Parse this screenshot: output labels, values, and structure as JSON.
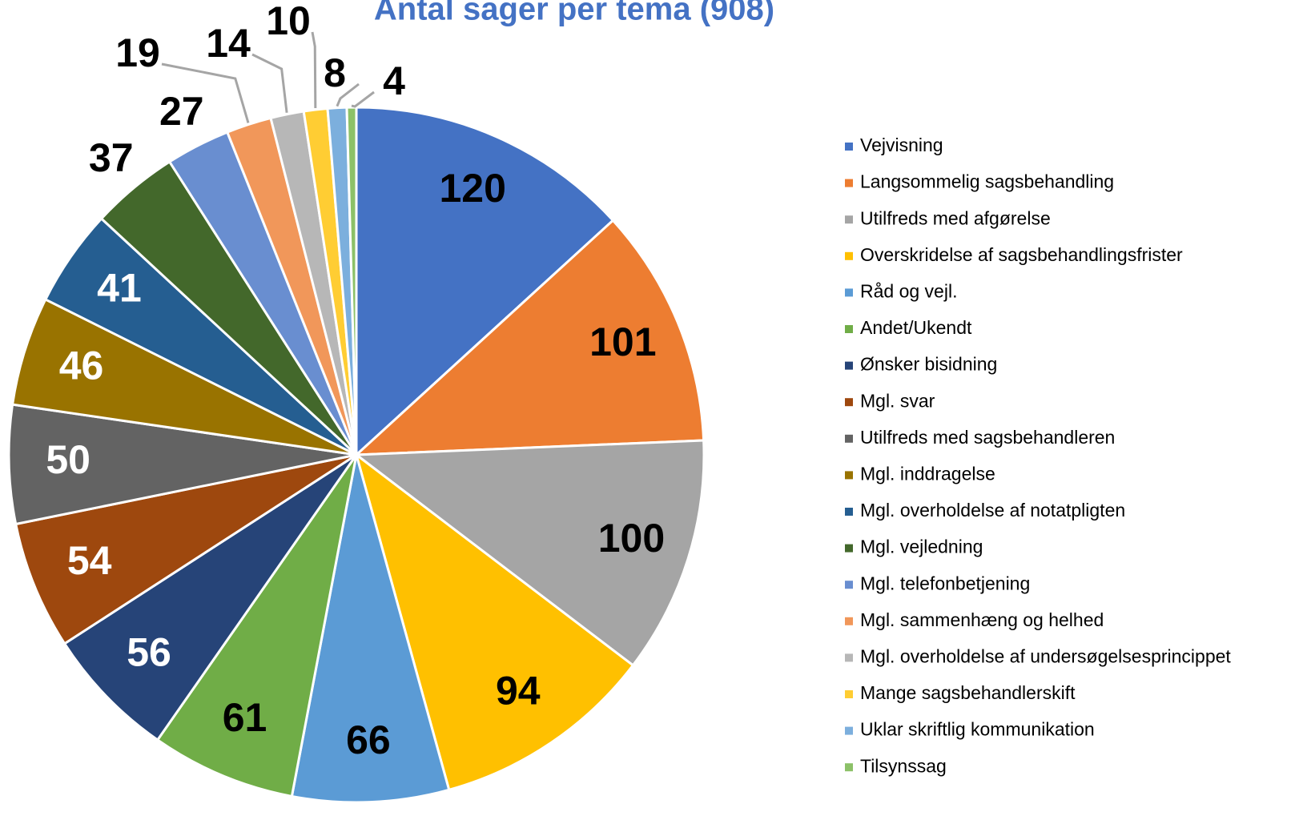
{
  "chart_data": {
    "type": "pie",
    "title": "Antal sager per tema (908)",
    "categories": [
      "Vejvisning",
      "Langsommelig sagsbehandling",
      "Utilfreds med afgørelse",
      "Overskridelse af sagsbehandlingsfrister",
      "Råd og vejl.",
      "Andet/Ukendt",
      "Ønsker bisidning",
      "Mgl. svar",
      "Utilfreds med sagsbehandleren",
      "Mgl. inddragelse",
      "Mgl. overholdelse af notatpligten",
      "Mgl. vejledning",
      "Mgl. telefonbetjening",
      "Mgl. sammenhæng og helhed",
      "Mgl. overholdelse af undersøgelsesprincippet",
      "Mange sagsbehandlerskift",
      "Uklar skriftlig kommunikation",
      "Tilsynssag"
    ],
    "values": [
      120,
      101,
      100,
      94,
      66,
      61,
      56,
      54,
      50,
      46,
      41,
      37,
      27,
      19,
      14,
      10,
      8,
      4
    ],
    "colors": [
      "#4472c4",
      "#ed7d31",
      "#a5a5a5",
      "#ffc000",
      "#5b9bd5",
      "#70ad47",
      "#264478",
      "#9e480e",
      "#636363",
      "#997300",
      "#255e91",
      "#43682b",
      "#698ed0",
      "#f1975a",
      "#b7b7b7",
      "#ffcd33",
      "#7cafdd",
      "#8cc168"
    ],
    "label_colors": [
      "#000",
      "#000",
      "#000",
      "#000",
      "#000",
      "#000",
      "#fff",
      "#fff",
      "#fff",
      "#fff",
      "#fff",
      "#000",
      "#000",
      "#000",
      "#000",
      "#000",
      "#000",
      "#000"
    ],
    "legend": "right"
  }
}
